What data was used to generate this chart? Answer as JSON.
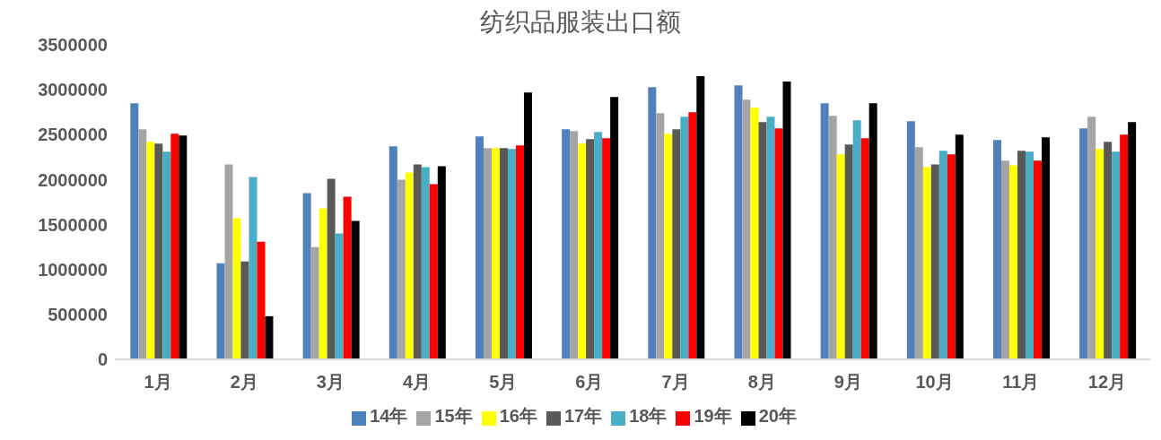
{
  "chart_data": {
    "type": "bar",
    "title": "纺织品服装出口额",
    "categories": [
      "1月",
      "2月",
      "3月",
      "4月",
      "5月",
      "6月",
      "7月",
      "8月",
      "9月",
      "10月",
      "11月",
      "12月"
    ],
    "series": [
      {
        "name": "14年",
        "color": "#4f81bd",
        "values": [
          2850000,
          1070000,
          1850000,
          2370000,
          2480000,
          2560000,
          3030000,
          3050000,
          2850000,
          2650000,
          2440000,
          2570000
        ]
      },
      {
        "name": "15年",
        "color": "#a5a5a5",
        "values": [
          2560000,
          2170000,
          1250000,
          2000000,
          2350000,
          2540000,
          2740000,
          2890000,
          2710000,
          2360000,
          2210000,
          2700000
        ]
      },
      {
        "name": "16年",
        "color": "#ffff00",
        "values": [
          2420000,
          1570000,
          1680000,
          2080000,
          2350000,
          2400000,
          2510000,
          2800000,
          2280000,
          2140000,
          2160000,
          2340000
        ]
      },
      {
        "name": "17年",
        "color": "#595959",
        "values": [
          2400000,
          1090000,
          2010000,
          2170000,
          2350000,
          2450000,
          2560000,
          2640000,
          2390000,
          2170000,
          2320000,
          2420000
        ]
      },
      {
        "name": "18年",
        "color": "#4bacc6",
        "values": [
          2310000,
          2030000,
          1400000,
          2140000,
          2340000,
          2530000,
          2700000,
          2700000,
          2660000,
          2320000,
          2310000,
          2310000
        ]
      },
      {
        "name": "19年",
        "color": "#ff0000",
        "values": [
          2510000,
          1310000,
          1810000,
          1950000,
          2380000,
          2460000,
          2750000,
          2570000,
          2460000,
          2280000,
          2210000,
          2500000
        ]
      },
      {
        "name": "20年",
        "color": "#000000",
        "values": [
          2490000,
          480000,
          1540000,
          2150000,
          2970000,
          2920000,
          3150000,
          3090000,
          2850000,
          2500000,
          2470000,
          2640000
        ]
      }
    ],
    "ylim": [
      0,
      3500000
    ],
    "yticks": [
      0,
      500000,
      1000000,
      1500000,
      2000000,
      2500000,
      3000000,
      3500000
    ],
    "grid": false,
    "legend": "bottom"
  }
}
